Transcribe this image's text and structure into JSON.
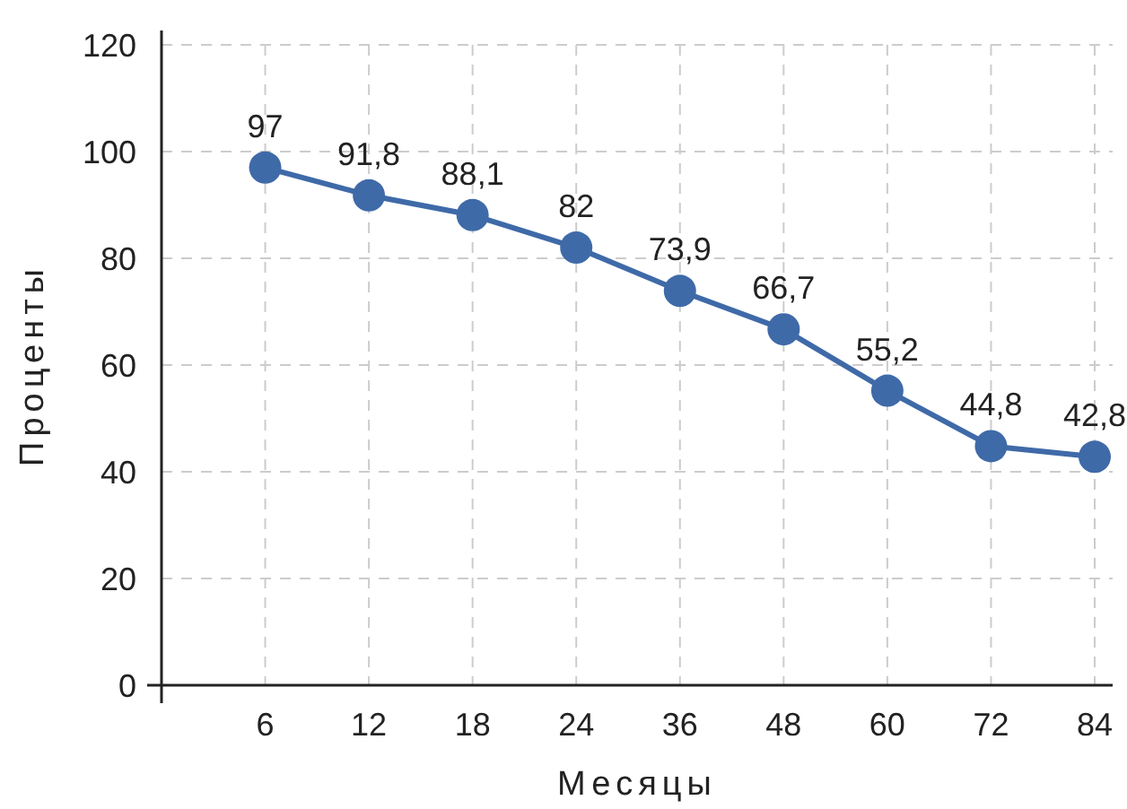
{
  "chart_data": {
    "type": "line",
    "xlabel": "Месяцы",
    "ylabel": "Проценты",
    "categories": [
      "6",
      "12",
      "18",
      "24",
      "36",
      "48",
      "60",
      "72",
      "84"
    ],
    "series": [
      {
        "color": "#3f6aa8",
        "values": [
          97,
          91.8,
          88.1,
          82,
          73.9,
          66.7,
          55.2,
          44.8,
          42.8
        ],
        "value_labels": [
          "97",
          "91,8",
          "88,1",
          "82",
          "73,9",
          "66,7",
          "55,2",
          "44,8",
          "42,8"
        ]
      }
    ],
    "ylim": [
      0,
      120
    ],
    "yticks": [
      0,
      20,
      40,
      60,
      80,
      100,
      120
    ],
    "grid": true,
    "marker": "circle",
    "line_style": "solid"
  }
}
